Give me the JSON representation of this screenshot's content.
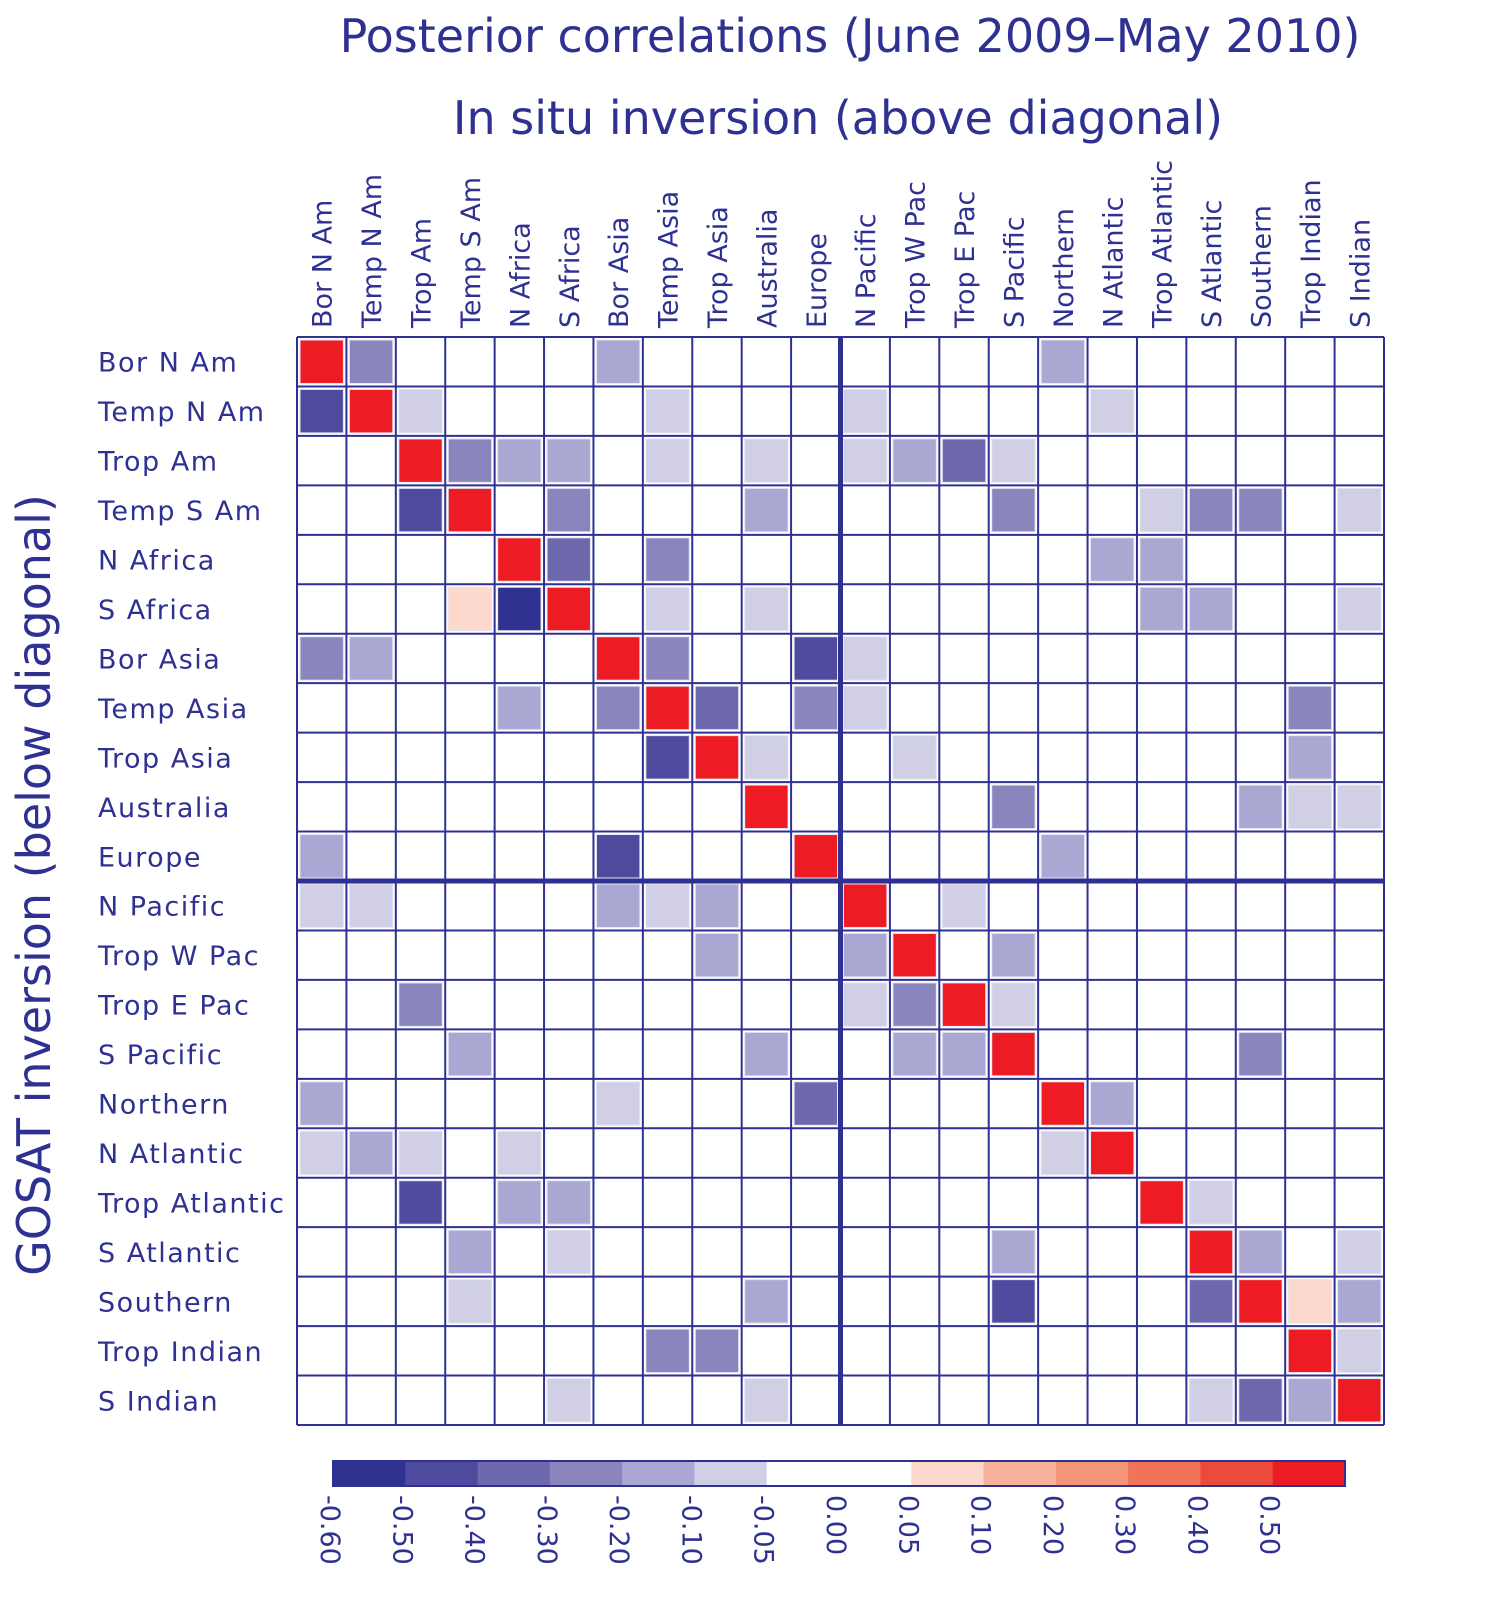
{
  "chart_data": {
    "type": "heatmap",
    "title": "Posterior correlations (June 2009–May 2010)",
    "subtitle": "In situ inversion (above diagonal)",
    "ylabel": "GOSAT inversion (below diagonal)",
    "regions": [
      "Bor N Am",
      "Temp N Am",
      "Trop Am",
      "Temp S Am",
      "N Africa",
      "S Africa",
      "Bor Asia",
      "Temp Asia",
      "Trop Asia",
      "Australia",
      "Europe",
      "N Pacific",
      "Trop W Pac",
      "Trop E Pac",
      "S Pacific",
      "Northern",
      "N Atlantic",
      "Trop Atlantic",
      "S Atlantic",
      "Southern",
      "Trop Indian",
      "S Indian"
    ],
    "land_ocean_split_after_index": 10,
    "colorbar": {
      "tick_labels": [
        "-0.60",
        "-0.50",
        "-0.40",
        "-0.30",
        "-0.20",
        "-0.10",
        "-0.05",
        "0.00",
        "0.05",
        "0.10",
        "0.20",
        "0.30",
        "0.40",
        "0.50"
      ],
      "bounds": [
        -0.6,
        -0.5,
        -0.4,
        -0.3,
        -0.2,
        -0.1,
        -0.05,
        0,
        0.05,
        0.1,
        0.2,
        0.3,
        0.4,
        0.5,
        1.0
      ],
      "colors": [
        "#2f3191",
        "#4e4a9e",
        "#6e68ad",
        "#8a85bd",
        "#aba7d3",
        "#d0cfe6",
        "#ffffff",
        "#ffffff",
        "#fcd9cc",
        "#f8b29c",
        "#f4957a",
        "#f0735a",
        "#ec4a3a",
        "#ed1c24"
      ]
    },
    "values": [
      [
        1,
        -0.25,
        0,
        0,
        0,
        0,
        -0.15,
        0,
        0,
        0,
        0,
        0,
        0,
        0,
        0,
        -0.15,
        0,
        0,
        0,
        0,
        0,
        0
      ],
      [
        -0.45,
        1,
        -0.075,
        0,
        0,
        0,
        0,
        -0.075,
        0,
        0,
        0,
        -0.075,
        0,
        0,
        0,
        0,
        -0.075,
        0,
        0,
        0,
        0,
        0
      ],
      [
        0,
        0,
        1,
        -0.25,
        -0.15,
        -0.15,
        0,
        -0.075,
        0,
        -0.075,
        0,
        -0.075,
        -0.15,
        -0.35,
        -0.075,
        0,
        0,
        0,
        0,
        0,
        0,
        0
      ],
      [
        0,
        0,
        -0.45,
        1,
        0,
        -0.25,
        0,
        0,
        0,
        -0.15,
        0,
        0,
        0,
        0,
        -0.25,
        0,
        0,
        -0.075,
        -0.25,
        -0.25,
        0,
        -0.075
      ],
      [
        0,
        0,
        0,
        0,
        1,
        -0.35,
        0,
        -0.25,
        0,
        0,
        0,
        0,
        0,
        0,
        0,
        0,
        -0.15,
        -0.15,
        0,
        0,
        0,
        0
      ],
      [
        0,
        0,
        0,
        0.075,
        -0.55,
        1,
        0,
        -0.075,
        0,
        -0.075,
        0,
        0,
        0,
        0,
        0,
        0,
        0,
        -0.15,
        -0.15,
        0,
        0,
        -0.075
      ],
      [
        -0.25,
        -0.15,
        0,
        0,
        0,
        0,
        1,
        -0.25,
        0,
        0,
        -0.45,
        -0.075,
        0,
        0,
        0,
        0,
        0,
        0,
        0,
        0,
        0,
        0
      ],
      [
        0,
        0,
        0,
        0,
        -0.15,
        0,
        -0.25,
        1,
        -0.35,
        0,
        -0.25,
        -0.075,
        0,
        0,
        0,
        0,
        0,
        0,
        0,
        0,
        -0.25,
        0
      ],
      [
        0,
        0,
        0,
        0,
        0,
        0,
        0,
        -0.45,
        1,
        -0.075,
        0,
        0,
        -0.075,
        0,
        0,
        0,
        0,
        0,
        0,
        0,
        -0.15,
        0
      ],
      [
        0,
        0,
        0,
        0,
        0,
        0,
        0,
        0,
        0,
        1,
        0,
        0,
        0,
        0,
        -0.25,
        0,
        0,
        0,
        0,
        -0.15,
        -0.075,
        -0.075
      ],
      [
        -0.15,
        0,
        0,
        0,
        0,
        0,
        -0.45,
        0,
        0,
        0,
        1,
        0,
        0,
        0,
        0,
        -0.15,
        0,
        0,
        0,
        0,
        0,
        0
      ],
      [
        -0.075,
        -0.075,
        0,
        0,
        0,
        0,
        -0.15,
        -0.075,
        -0.15,
        0,
        0,
        1,
        0,
        -0.075,
        0,
        0,
        0,
        0,
        0,
        0,
        0,
        0
      ],
      [
        0,
        0,
        0,
        0,
        0,
        0,
        0,
        0,
        -0.15,
        0,
        0,
        -0.15,
        1,
        0,
        -0.15,
        0,
        0,
        0,
        0,
        0,
        0,
        0
      ],
      [
        0,
        0,
        -0.25,
        0,
        0,
        0,
        0,
        0,
        0,
        0,
        0,
        -0.075,
        -0.25,
        1,
        -0.075,
        0,
        0,
        0,
        0,
        0,
        0,
        0
      ],
      [
        0,
        0,
        0,
        -0.15,
        0,
        0,
        0,
        0,
        0,
        -0.15,
        0,
        0,
        -0.15,
        -0.15,
        1,
        0,
        0,
        0,
        0,
        -0.25,
        0,
        0
      ],
      [
        -0.15,
        0,
        0,
        0,
        0,
        0,
        -0.075,
        0,
        0,
        0,
        -0.35,
        0,
        0,
        0,
        0,
        1,
        -0.15,
        0,
        0,
        0,
        0,
        0
      ],
      [
        -0.075,
        -0.15,
        -0.075,
        0,
        -0.075,
        0,
        0,
        0,
        0,
        0,
        0,
        0,
        0,
        0,
        0,
        -0.075,
        1,
        0,
        0,
        0,
        0,
        0
      ],
      [
        0,
        0,
        -0.45,
        0,
        -0.15,
        -0.15,
        0,
        0,
        0,
        0,
        0,
        0,
        0,
        0,
        0,
        0,
        0,
        1,
        -0.075,
        0,
        0,
        0
      ],
      [
        0,
        0,
        0,
        -0.15,
        0,
        -0.075,
        0,
        0,
        0,
        0,
        0,
        0,
        0,
        0,
        -0.15,
        0,
        0,
        0,
        1,
        -0.15,
        0,
        -0.075
      ],
      [
        0,
        0,
        0,
        -0.075,
        0,
        0,
        0,
        0,
        0,
        -0.15,
        0,
        0,
        0,
        0,
        -0.45,
        0,
        0,
        0,
        -0.35,
        1,
        0.075,
        -0.15
      ],
      [
        0,
        0,
        0,
        0,
        0,
        0,
        0,
        -0.25,
        -0.25,
        0,
        0,
        0,
        0,
        0,
        0,
        0,
        0,
        0,
        0,
        0,
        1,
        -0.075
      ],
      [
        0,
        0,
        0,
        0,
        0,
        -0.075,
        0,
        0,
        0,
        -0.075,
        0,
        0,
        0,
        0,
        0,
        0,
        0,
        0,
        -0.075,
        -0.35,
        -0.15,
        1
      ]
    ],
    "axis_color": "#2e3192"
  }
}
